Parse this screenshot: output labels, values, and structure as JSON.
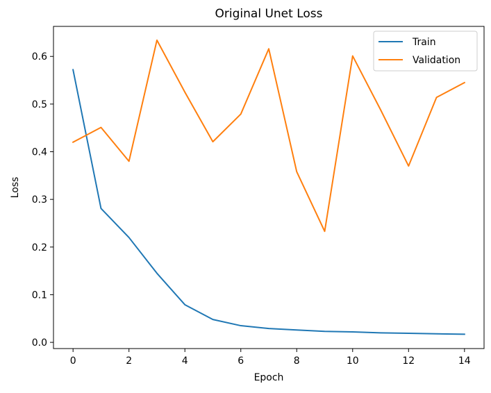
{
  "chart_data": {
    "type": "line",
    "title": "Original Unet Loss",
    "xlabel": "Epoch",
    "ylabel": "Loss",
    "x": [
      0,
      1,
      2,
      3,
      4,
      5,
      6,
      7,
      8,
      9,
      10,
      11,
      12,
      13,
      14
    ],
    "xlim": [
      -0.7,
      14.7
    ],
    "ylim": [
      -0.013,
      0.663
    ],
    "xticks": [
      0,
      2,
      4,
      6,
      8,
      10,
      12,
      14
    ],
    "yticks": [
      0.0,
      0.1,
      0.2,
      0.3,
      0.4,
      0.5,
      0.6
    ],
    "xtick_labels": [
      "0",
      "2",
      "4",
      "6",
      "8",
      "10",
      "12",
      "14"
    ],
    "ytick_labels": [
      "0.0",
      "0.1",
      "0.2",
      "0.3",
      "0.4",
      "0.5",
      "0.6"
    ],
    "grid": false,
    "legend_position": "top-right",
    "series": [
      {
        "name": "Train",
        "color": "#1f77b4",
        "values": [
          0.572,
          0.281,
          0.22,
          0.145,
          0.079,
          0.048,
          0.035,
          0.029,
          0.026,
          0.023,
          0.022,
          0.02,
          0.019,
          0.018,
          0.017
        ]
      },
      {
        "name": "Validation",
        "color": "#ff7f0e",
        "values": [
          0.42,
          0.451,
          0.38,
          0.634,
          0.525,
          0.421,
          0.479,
          0.616,
          0.358,
          0.233,
          0.601,
          0.488,
          0.37,
          0.514,
          0.545
        ]
      }
    ]
  }
}
